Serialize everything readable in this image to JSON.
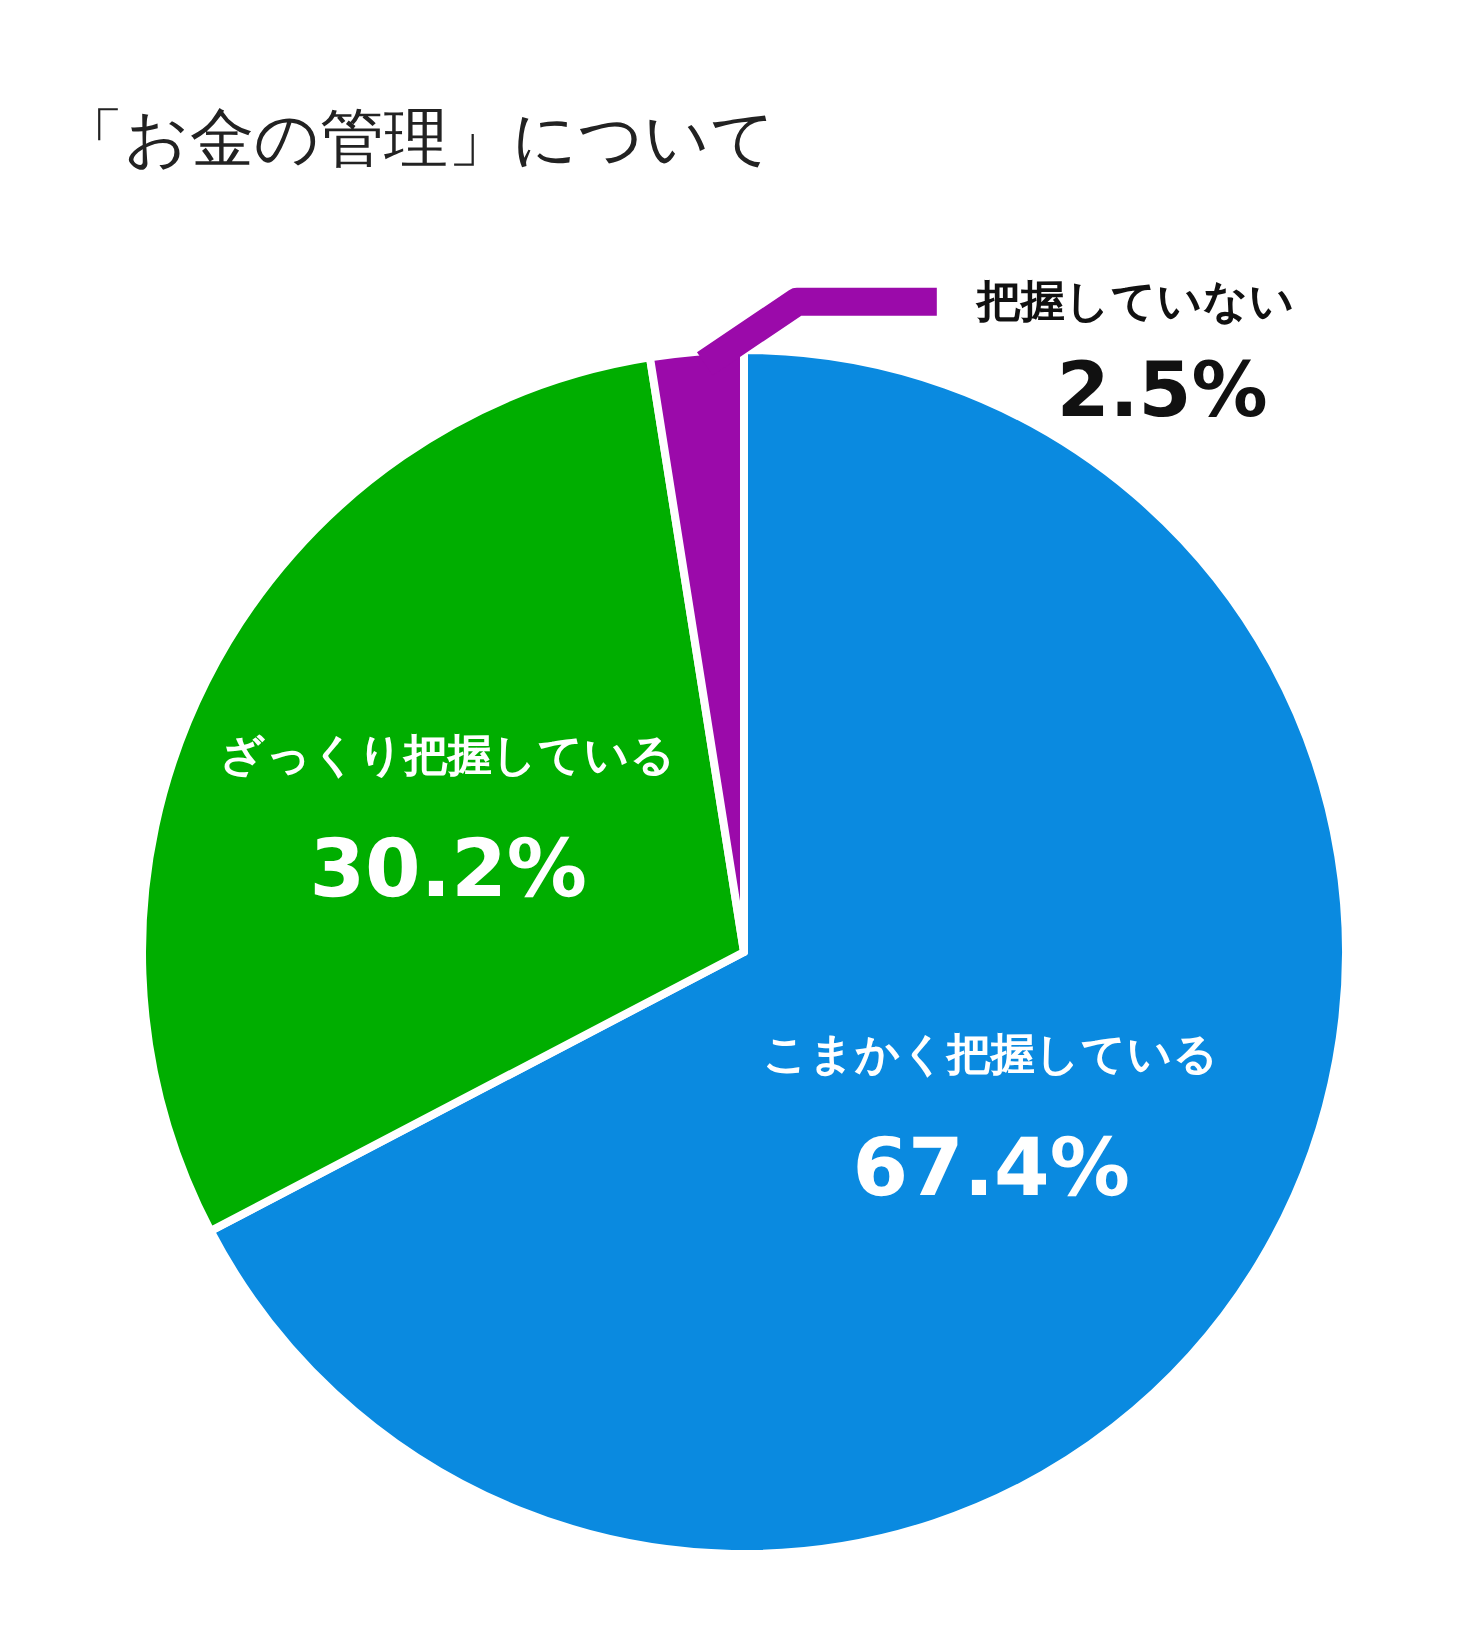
{
  "chart_data": {
    "type": "pie",
    "title": "「お金の管理」について",
    "categories": [
      "こまかく把握している",
      "ざっくり把握している",
      "把握していない"
    ],
    "values": [
      67.4,
      30.2,
      2.5
    ],
    "value_labels": [
      "67.4%",
      "30.2%",
      "2.5%"
    ],
    "colors": [
      "#0a8ae0",
      "#00ae00",
      "#9b0aaa"
    ]
  }
}
